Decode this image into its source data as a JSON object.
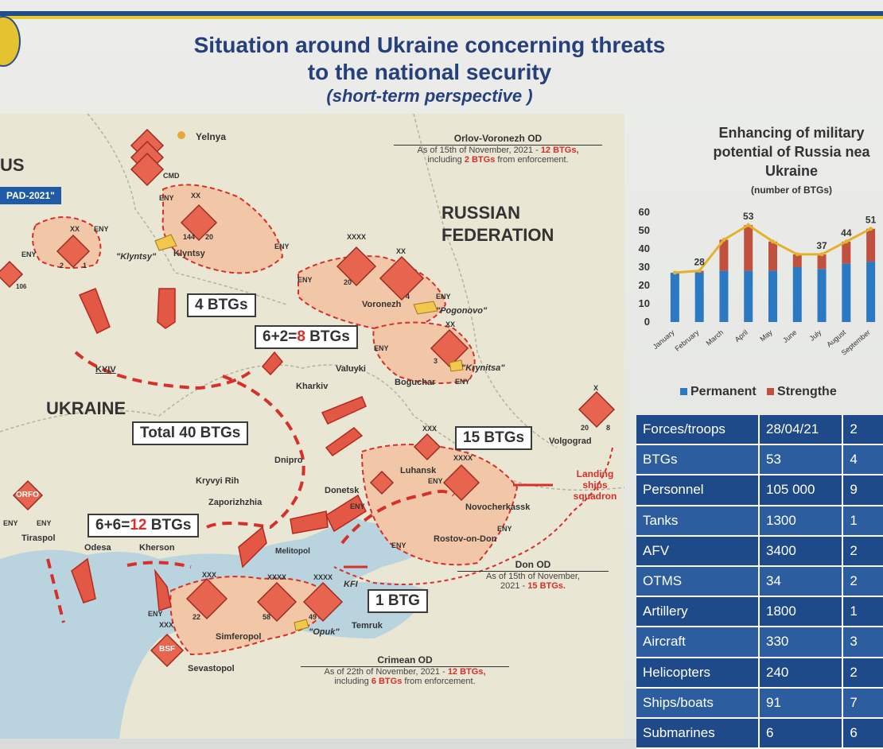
{
  "title_line1": "Situation around Ukraine concerning threats",
  "title_line2": "to the national security",
  "subtitle": "(short-term perspective )",
  "map": {
    "countries": {
      "belarus_partial": "US",
      "russia_line1": "RUSSIAN",
      "russia_line2": "FEDERATION",
      "ukraine": "UKRAINE"
    },
    "zapad_label": "PAD-2021\"",
    "cities": [
      "Yelnya",
      "Klyntsy",
      "Voronezh",
      "Valuyki",
      "Kharkiv",
      "Boguchar",
      "KYIV",
      "Dnipro",
      "Kryvyi Rih",
      "Zaporizhzhia",
      "Donetsk",
      "Luhansk",
      "Novocherkassk",
      "Rostov-on-Don",
      "Volgograd",
      "Melitopol",
      "Odesa",
      "Kherson",
      "Tiraspol",
      "Simferopol",
      "Sevastopol",
      "Temruk",
      "KFI"
    ],
    "exercise_areas": [
      "\"Klyntsy\"",
      "\"Pogonovo\"",
      "\"Krynitsa\"",
      "\"Opuk\""
    ],
    "unit_labels": {
      "eny": "ENY",
      "cmd": "CMD",
      "xx": "XX",
      "xxxx": "XXXX",
      "xxx": "XXX",
      "x": "X",
      "orfo": "ORFO",
      "bsf": "BSF",
      "num144": "144",
      "num20": "20",
      "num2": "2",
      "num1": "1",
      "num106": "106",
      "num3": "3",
      "num4": "4",
      "num8": "8",
      "num22": "22",
      "num58": "58",
      "num49": "49"
    },
    "landing_ships": "Landing ships squadron",
    "boxes": {
      "b4": "4 BTGs",
      "b8_prefix": "6+2=",
      "b8_red": "8",
      "b8_suffix": " BTGs",
      "b40": "Total 40 BTGs",
      "b15": "15 BTGs",
      "b12_prefix": "6+6=",
      "b12_red": "12",
      "b12_suffix": " BTGs",
      "b1": "1 BTG"
    },
    "notes": {
      "orlov_head": "Orlov-Voronezh OD",
      "orlov_l1_a": "As of 15th of November, 2021 - ",
      "orlov_l1_b": "12 BTGs,",
      "orlov_l2_a": "including ",
      "orlov_l2_b": "2 BTGs",
      "orlov_l2_c": " from enforcement.",
      "don_head": "Don OD",
      "don_l1": "As of 15th of November,",
      "don_l2_a": "2021 - ",
      "don_l2_b": "15 BTGs.",
      "crimea_head": "Crimean OD",
      "crimea_l1_a": "As of 22th of November, 2021 - ",
      "crimea_l1_b": "12 BTGs,",
      "crimea_l2_a": "including ",
      "crimea_l2_b": "6 BTGs",
      "crimea_l2_c": " from enforcement."
    }
  },
  "right": {
    "title_l1": "Enhancing of military",
    "title_l2": "potential of Russia nea",
    "title_l3": "Ukraine",
    "sub": "(number of BTGs)",
    "legend_permanent": "Permanent",
    "legend_strengthen": "Strengthe"
  },
  "chart_data": {
    "type": "bar",
    "stacked": true,
    "categories": [
      "January",
      "February",
      "March",
      "April",
      "May",
      "June",
      "July",
      "August",
      "September"
    ],
    "series": [
      {
        "name": "Permanent",
        "values": [
          27,
          27,
          28,
          28,
          28,
          30,
          29,
          32,
          33
        ],
        "color": "#2b79c2"
      },
      {
        "name": "Strengthen",
        "values": [
          0,
          1,
          17,
          25,
          16,
          7,
          8,
          12,
          18
        ],
        "color": "#c0513f"
      }
    ],
    "labels": [
      {
        "x": "February",
        "value": 28
      },
      {
        "x": "April",
        "value": 53
      },
      {
        "x": "July",
        "value": 37
      },
      {
        "x": "August",
        "value": 44
      },
      {
        "x": "September",
        "value": "51"
      }
    ],
    "trend_color": "#e4b22a",
    "yticks": [
      0,
      10,
      20,
      30,
      40,
      50,
      60
    ],
    "ylim": [
      0,
      60
    ],
    "grid": false
  },
  "table": {
    "header": [
      "Forces/troops",
      "28/04/21",
      "2"
    ],
    "rows": [
      [
        "BTGs",
        "53",
        "4"
      ],
      [
        "Personnel",
        "105 000",
        "9"
      ],
      [
        "Tanks",
        "1300",
        "1"
      ],
      [
        "AFV",
        "3400",
        "2"
      ],
      [
        "OTMS",
        "34",
        "2"
      ],
      [
        "Artillery",
        "1800",
        "1"
      ],
      [
        "Aircraft",
        "330",
        "3"
      ],
      [
        "Helicopters",
        "240",
        "2"
      ],
      [
        "Ships/boats",
        "91",
        "7"
      ],
      [
        "Submarines",
        "6",
        "6"
      ]
    ]
  },
  "colors": {
    "title_blue": "#25407a",
    "accent_red": "#d6302a",
    "area_fill": "#f2c7a8"
  }
}
